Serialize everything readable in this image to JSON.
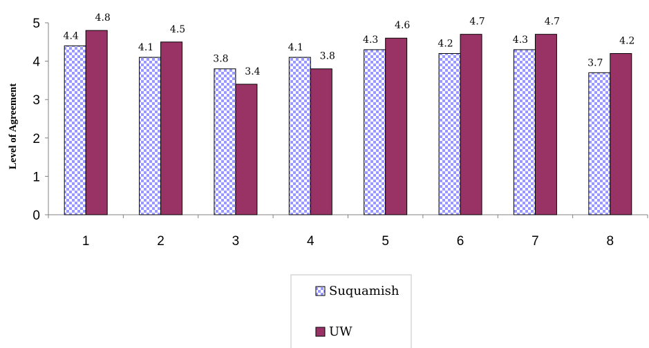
{
  "chart_data": {
    "type": "bar",
    "title": "",
    "xlabel": "",
    "ylabel": "Level of Agreement",
    "ylim": [
      0,
      5
    ],
    "yticks": [
      0,
      1,
      2,
      3,
      4,
      5
    ],
    "categories": [
      "1",
      "2",
      "3",
      "4",
      "5",
      "6",
      "7",
      "8"
    ],
    "series": [
      {
        "name": "Suquamish",
        "values": [
          4.4,
          4.1,
          3.8,
          4.1,
          4.3,
          4.2,
          4.3,
          3.7
        ],
        "labels": [
          "4.4",
          "4.1",
          "3.8",
          "4.1",
          "4.3",
          "4.2",
          "4.3",
          "3.7"
        ],
        "fill": "checkered",
        "color": "#9999ff"
      },
      {
        "name": "UW",
        "values": [
          4.8,
          4.5,
          3.4,
          3.8,
          4.6,
          4.7,
          4.7,
          4.2
        ],
        "labels": [
          "4.8",
          "4.5",
          "3.4",
          "3.8",
          "4.6",
          "4.7",
          "4.7",
          "4.2"
        ],
        "fill": "solid",
        "color": "#993366"
      }
    ],
    "grid": false,
    "legend_position": "bottom"
  }
}
